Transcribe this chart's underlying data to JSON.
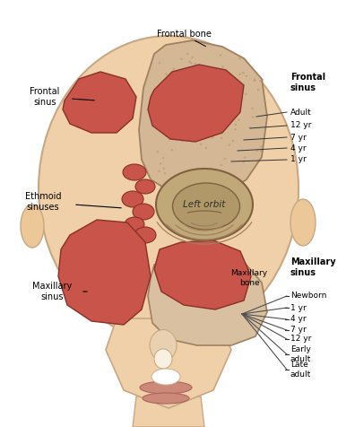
{
  "bg_color": "#ffffff",
  "skin_light": "#f0d0a8",
  "skin_medium": "#e8c090",
  "skin_dark": "#d4aa78",
  "ear_color": "#ecc898",
  "sinus_color": "#c8544a",
  "sinus_edge": "#8b3028",
  "bone_color": "#d4b896",
  "bone_edge": "#a08060",
  "orbit_color": "#c0a878",
  "orbit_edge": "#806040",
  "orbit_inner": "#b09868",
  "mb_color": "#d8c0a0",
  "face_edge": "#c8a882",
  "frontal_sinus_label": "Frontal\nsinus",
  "ethmoid_label": "Ethmoid\nsinuses",
  "maxillary_label": "Maxillary\nsinus",
  "frontal_bone_label": "Frontal bone",
  "left_orbit_label": "Left orbit",
  "maxillary_bone_label": "Maxillary\nbone",
  "frontal_sinus_bold": "Frontal\nsinus",
  "maxillary_sinus_bold": "Maxillary\nsinus",
  "frontal_ages": [
    "Adult",
    "12 yr",
    "7 yr",
    "4 yr",
    "1 yr"
  ],
  "maxillary_ages": [
    "Newborn",
    "1 yr",
    "4 yr",
    "7 yr",
    "12 yr",
    "Early\nadult",
    "Late\nadult"
  ]
}
